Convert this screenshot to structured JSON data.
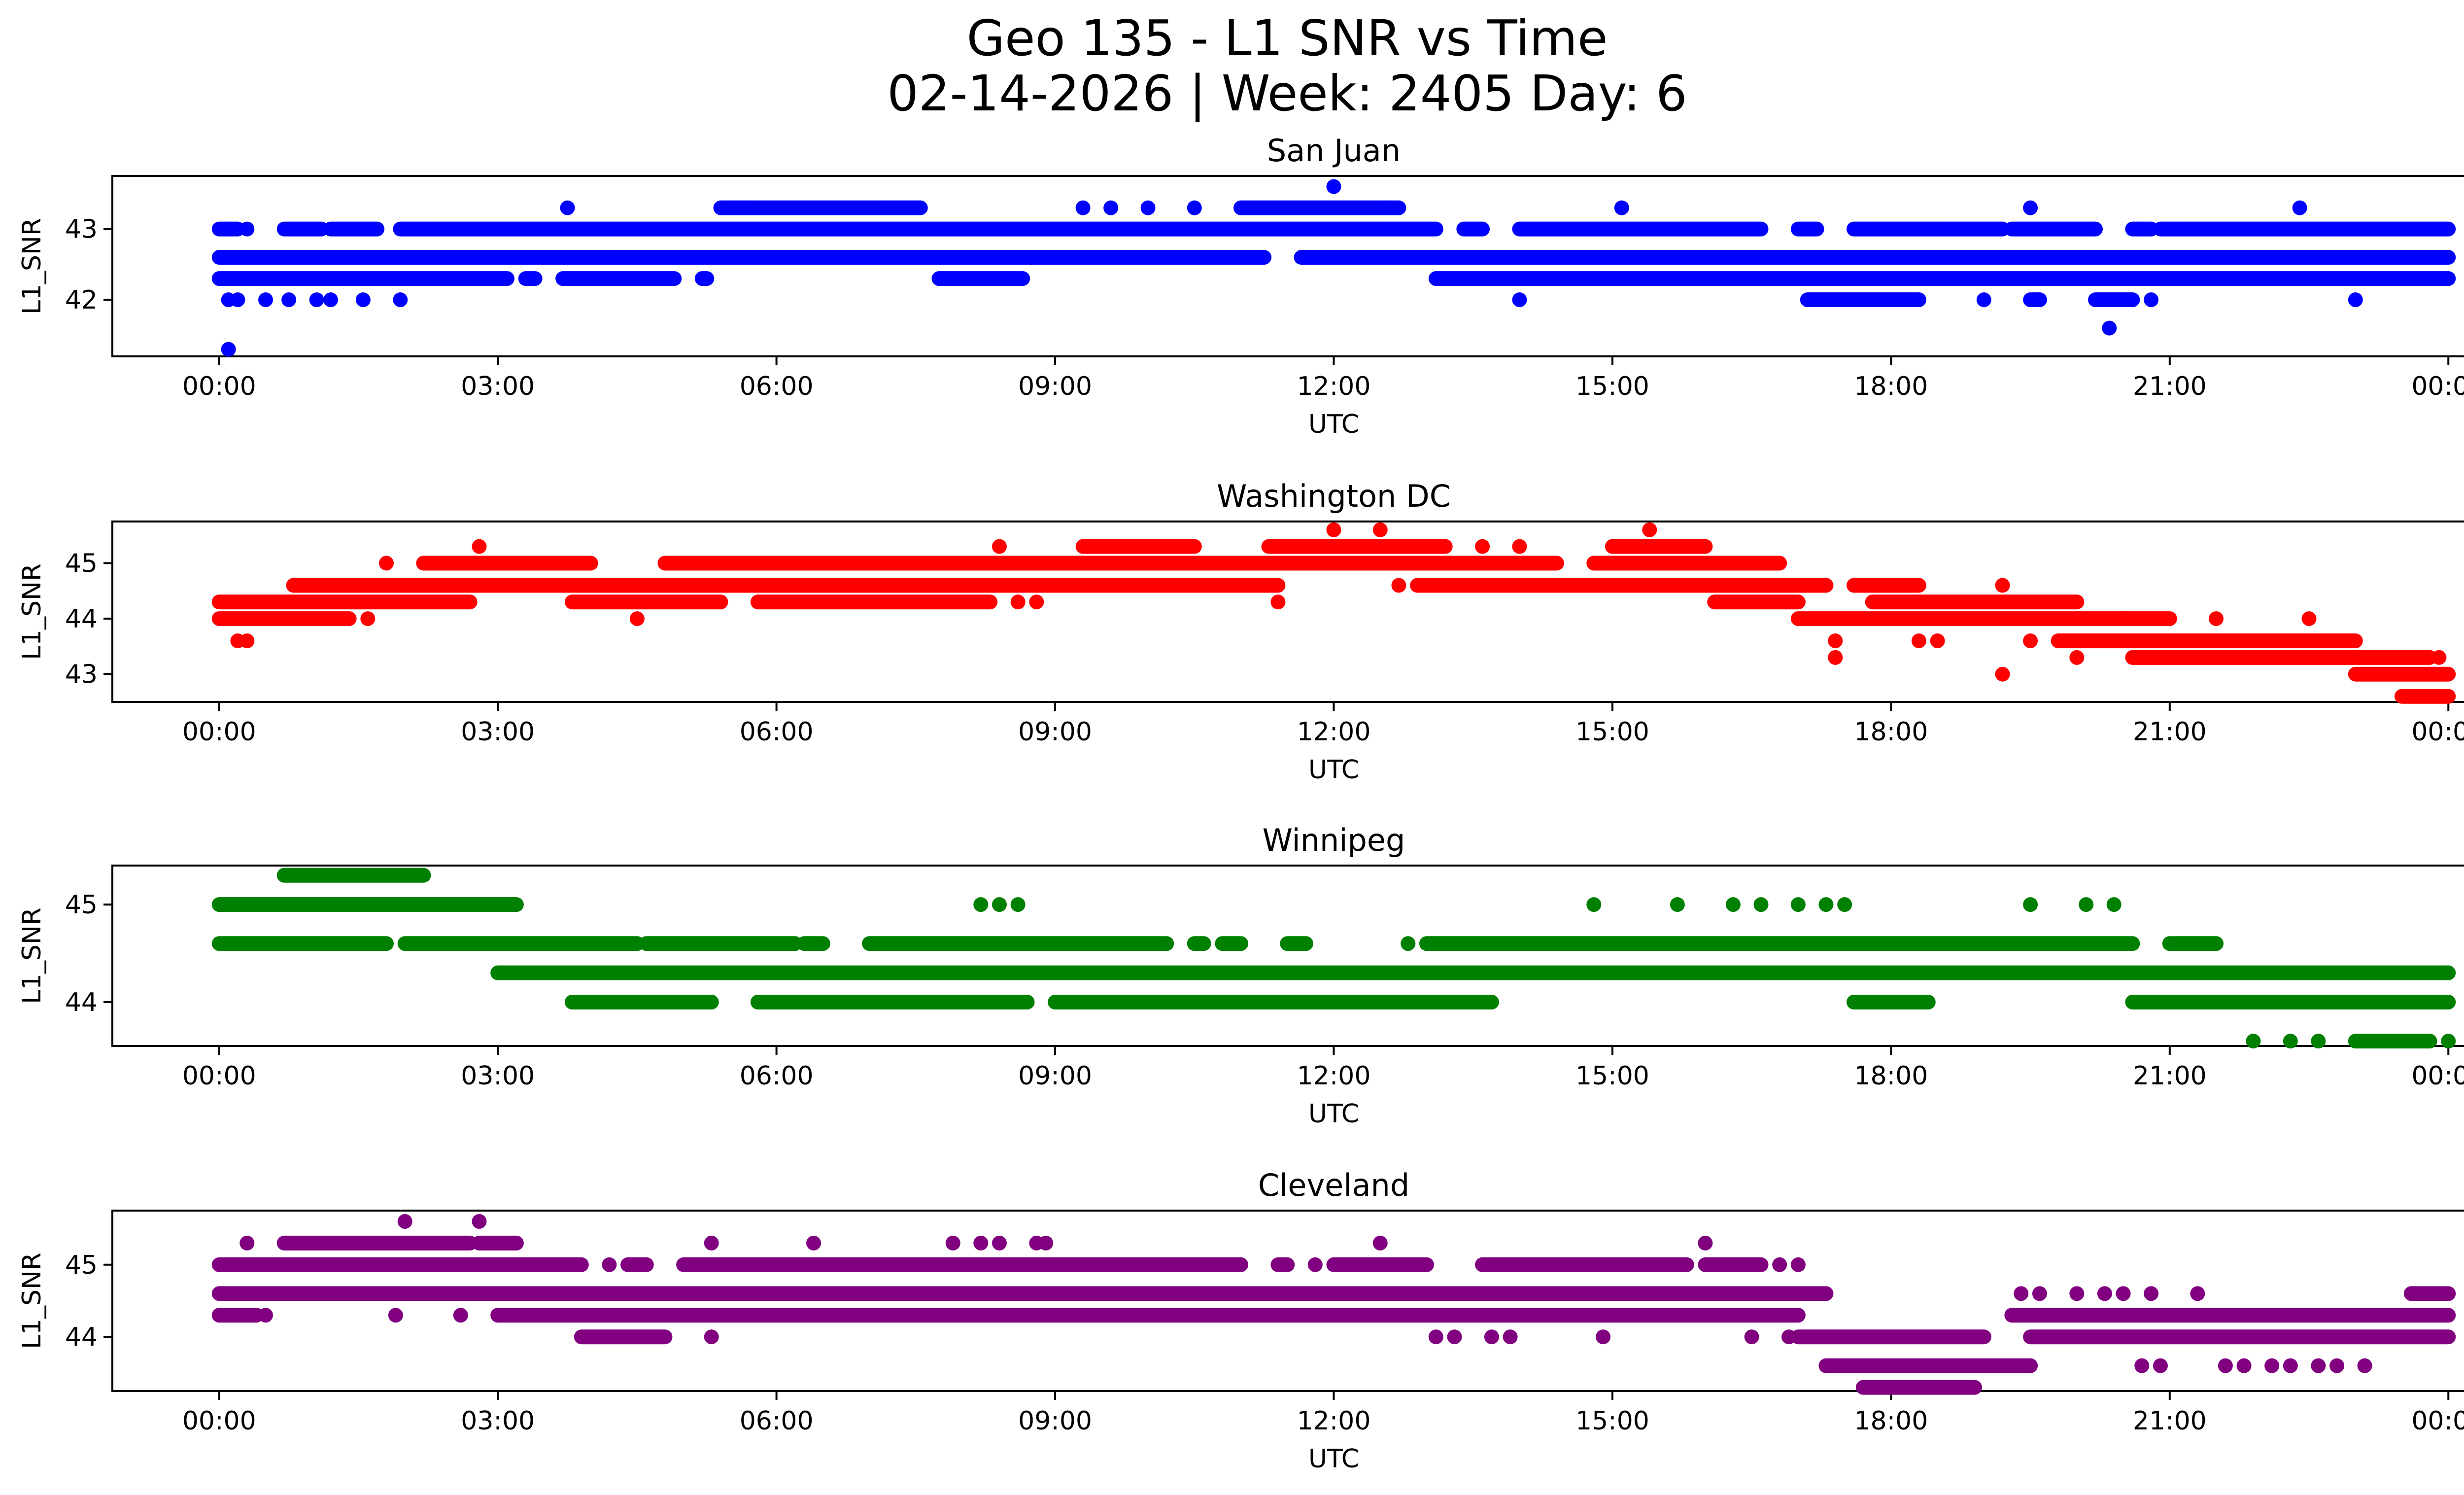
{
  "figure": {
    "title_line1": "Geo 135 - L1 SNR vs Time",
    "title_line2": "02-14-2026 | Week: 2405 Day: 6"
  },
  "chart_data": [
    {
      "type": "scatter",
      "title": "San Juan",
      "xlabel": "UTC",
      "ylabel": "L1_SNR",
      "color": "#0000ff",
      "x_ticks": [
        "00:00",
        "03:00",
        "06:00",
        "09:00",
        "12:00",
        "15:00",
        "18:00",
        "21:00",
        "00:00"
      ],
      "x_range_hours": [
        -1.15,
        25.15
      ],
      "ylim": [
        41.2,
        43.75
      ],
      "y_ticks": [
        42,
        43
      ],
      "series": [
        {
          "name": "band_42.6",
          "y": 42.6,
          "segments": [
            [
              0,
              11.25
            ],
            [
              11.65,
              24
            ]
          ]
        },
        {
          "name": "band_42.3",
          "y": 42.3,
          "segments": [
            [
              0,
              3.1
            ],
            [
              3.3,
              3.4
            ],
            [
              3.7,
              4.9
            ],
            [
              5.2,
              5.25
            ],
            [
              7.75,
              8.65
            ],
            [
              13.1,
              24
            ]
          ]
        },
        {
          "name": "band_43.0",
          "y": 43.0,
          "segments": [
            [
              0.0,
              0.2
            ],
            [
              0.7,
              1.1
            ],
            [
              1.2,
              1.7
            ],
            [
              1.95,
              13.1
            ],
            [
              13.4,
              13.6
            ],
            [
              14.0,
              16.6
            ],
            [
              17.0,
              17.2
            ],
            [
              17.6,
              19.2
            ],
            [
              19.3,
              20.2
            ],
            [
              20.6,
              20.8
            ],
            [
              20.9,
              24
            ]
          ]
        },
        {
          "name": "band_43.3",
          "y": 43.3,
          "segments": [
            [
              5.4,
              7.55
            ],
            [
              11.0,
              12.7
            ]
          ]
        },
        {
          "name": "band_42.0",
          "y": 42.0,
          "segments": [
            [
              17.1,
              18.3
            ],
            [
              19.5,
              19.6
            ],
            [
              20.2,
              20.6
            ]
          ]
        }
      ],
      "points": [
        {
          "x": 0.1,
          "y": 41.3
        },
        {
          "x": 0.1,
          "y": 42.0
        },
        {
          "x": 0.2,
          "y": 42.0
        },
        {
          "x": 0.5,
          "y": 42.0
        },
        {
          "x": 0.75,
          "y": 42.0
        },
        {
          "x": 1.05,
          "y": 42.0
        },
        {
          "x": 1.2,
          "y": 42.0
        },
        {
          "x": 1.55,
          "y": 42.0
        },
        {
          "x": 1.95,
          "y": 42.0
        },
        {
          "x": 0.3,
          "y": 43.0
        },
        {
          "x": 3.75,
          "y": 43.3
        },
        {
          "x": 9.3,
          "y": 43.3
        },
        {
          "x": 9.6,
          "y": 43.3
        },
        {
          "x": 10.0,
          "y": 43.3
        },
        {
          "x": 10.5,
          "y": 43.3
        },
        {
          "x": 12.0,
          "y": 43.6
        },
        {
          "x": 15.1,
          "y": 43.3
        },
        {
          "x": 19.5,
          "y": 43.3
        },
        {
          "x": 22.4,
          "y": 43.3
        },
        {
          "x": 14.0,
          "y": 42.0
        },
        {
          "x": 19.0,
          "y": 42.0
        },
        {
          "x": 20.8,
          "y": 42.0
        },
        {
          "x": 23.0,
          "y": 42.0
        },
        {
          "x": 20.35,
          "y": 41.6
        }
      ]
    },
    {
      "type": "scatter",
      "title": "Washington DC",
      "xlabel": "UTC",
      "ylabel": "L1_SNR",
      "color": "#ff0000",
      "x_ticks": [
        "00:00",
        "03:00",
        "06:00",
        "09:00",
        "12:00",
        "15:00",
        "18:00",
        "21:00",
        "00:00"
      ],
      "x_range_hours": [
        -1.15,
        25.15
      ],
      "ylim": [
        42.5,
        45.75
      ],
      "y_ticks": [
        43,
        44,
        45
      ],
      "series": [
        {
          "name": "band_44.0",
          "y": 44.0,
          "segments": [
            [
              0,
              1.4
            ],
            [
              17.0,
              20.5
            ],
            [
              20.5,
              21.0
            ]
          ]
        },
        {
          "name": "band_44.3",
          "y": 44.3,
          "segments": [
            [
              0,
              2.7
            ],
            [
              3.8,
              5.4
            ],
            [
              5.8,
              8.3
            ],
            [
              16.1,
              17.0
            ],
            [
              17.8,
              20.0
            ]
          ]
        },
        {
          "name": "band_44.6",
          "y": 44.6,
          "segments": [
            [
              0.8,
              11.4
            ],
            [
              12.9,
              17.3
            ],
            [
              17.6,
              18.3
            ]
          ]
        },
        {
          "name": "band_45.0",
          "y": 45.0,
          "segments": [
            [
              2.2,
              4.0
            ],
            [
              4.8,
              14.4
            ],
            [
              14.8,
              16.8
            ]
          ]
        },
        {
          "name": "band_45.3",
          "y": 45.3,
          "segments": [
            [
              9.3,
              10.5
            ],
            [
              11.3,
              13.2
            ],
            [
              15.0,
              16.0
            ]
          ]
        },
        {
          "name": "band_43.6",
          "y": 43.6,
          "segments": [
            [
              19.8,
              23.0
            ]
          ]
        },
        {
          "name": "band_43.3",
          "y": 43.3,
          "segments": [
            [
              20.6,
              23.8
            ]
          ]
        },
        {
          "name": "band_43.0",
          "y": 43.0,
          "segments": [
            [
              23.0,
              24.0
            ]
          ]
        },
        {
          "name": "band_42.6",
          "y": 42.6,
          "segments": [
            [
              23.5,
              24.0
            ]
          ]
        }
      ],
      "points": [
        {
          "x": 0.2,
          "y": 43.6
        },
        {
          "x": 0.3,
          "y": 43.6
        },
        {
          "x": 1.6,
          "y": 44.0
        },
        {
          "x": 1.8,
          "y": 45.0
        },
        {
          "x": 2.8,
          "y": 45.3
        },
        {
          "x": 4.5,
          "y": 44.0
        },
        {
          "x": 8.4,
          "y": 45.3
        },
        {
          "x": 8.6,
          "y": 44.3
        },
        {
          "x": 8.8,
          "y": 44.3
        },
        {
          "x": 11.4,
          "y": 44.3
        },
        {
          "x": 12.0,
          "y": 45.6
        },
        {
          "x": 12.5,
          "y": 45.6
        },
        {
          "x": 12.7,
          "y": 44.6
        },
        {
          "x": 13.6,
          "y": 45.3
        },
        {
          "x": 14.0,
          "y": 45.3
        },
        {
          "x": 15.4,
          "y": 45.6
        },
        {
          "x": 17.4,
          "y": 43.6
        },
        {
          "x": 17.4,
          "y": 43.3
        },
        {
          "x": 18.3,
          "y": 43.6
        },
        {
          "x": 18.5,
          "y": 43.6
        },
        {
          "x": 19.2,
          "y": 44.6
        },
        {
          "x": 19.2,
          "y": 43.0
        },
        {
          "x": 19.5,
          "y": 43.6
        },
        {
          "x": 20.0,
          "y": 43.3
        },
        {
          "x": 21.5,
          "y": 44.0
        },
        {
          "x": 22.5,
          "y": 44.0
        },
        {
          "x": 23.9,
          "y": 43.3
        }
      ]
    },
    {
      "type": "scatter",
      "title": "Winnipeg",
      "xlabel": "UTC",
      "ylabel": "L1_SNR",
      "color": "#008000",
      "x_ticks": [
        "00:00",
        "03:00",
        "06:00",
        "09:00",
        "12:00",
        "15:00",
        "18:00",
        "21:00",
        "00:00"
      ],
      "x_range_hours": [
        -1.15,
        25.15
      ],
      "ylim": [
        43.55,
        45.4
      ],
      "y_ticks": [
        44,
        45
      ],
      "series": [
        {
          "name": "band_45.0",
          "y": 45.0,
          "segments": [
            [
              0,
              3.2
            ]
          ]
        },
        {
          "name": "band_45.3",
          "y": 45.3,
          "segments": [
            [
              0.7,
              2.2
            ]
          ]
        },
        {
          "name": "band_44.6",
          "y": 44.6,
          "segments": [
            [
              0,
              1.8
            ],
            [
              2.0,
              4.5
            ],
            [
              4.6,
              6.2
            ],
            [
              6.3,
              6.5
            ],
            [
              7.0,
              10.2
            ],
            [
              10.5,
              10.6
            ],
            [
              10.8,
              11.0
            ],
            [
              11.5,
              11.7
            ],
            [
              13.0,
              20.6
            ],
            [
              21.0,
              21.5
            ]
          ]
        },
        {
          "name": "band_44.3",
          "y": 44.3,
          "segments": [
            [
              3.0,
              24.0
            ]
          ]
        },
        {
          "name": "band_44.0",
          "y": 44.0,
          "segments": [
            [
              3.8,
              5.3
            ],
            [
              5.8,
              8.7
            ],
            [
              9.0,
              13.7
            ],
            [
              17.6,
              18.4
            ],
            [
              20.6,
              24.0
            ]
          ]
        },
        {
          "name": "band_43.6",
          "y": 43.6,
          "segments": [
            [
              23.0,
              23.8
            ]
          ]
        }
      ],
      "points": [
        {
          "x": 8.2,
          "y": 45.0
        },
        {
          "x": 8.4,
          "y": 45.0
        },
        {
          "x": 8.6,
          "y": 45.0
        },
        {
          "x": 12.8,
          "y": 44.6
        },
        {
          "x": 14.8,
          "y": 45.0
        },
        {
          "x": 15.7,
          "y": 45.0
        },
        {
          "x": 16.3,
          "y": 45.0
        },
        {
          "x": 16.6,
          "y": 45.0
        },
        {
          "x": 17.0,
          "y": 45.0
        },
        {
          "x": 17.3,
          "y": 45.0
        },
        {
          "x": 17.5,
          "y": 45.0
        },
        {
          "x": 19.5,
          "y": 45.0
        },
        {
          "x": 20.1,
          "y": 45.0
        },
        {
          "x": 20.4,
          "y": 45.0
        },
        {
          "x": 21.9,
          "y": 43.6
        },
        {
          "x": 22.3,
          "y": 43.6
        },
        {
          "x": 22.6,
          "y": 43.6
        },
        {
          "x": 24.0,
          "y": 43.6
        }
      ]
    },
    {
      "type": "scatter",
      "title": "Cleveland",
      "xlabel": "UTC",
      "ylabel": "L1_SNR",
      "color": "#800080",
      "x_ticks": [
        "00:00",
        "03:00",
        "06:00",
        "09:00",
        "12:00",
        "15:00",
        "18:00",
        "21:00",
        "00:00"
      ],
      "x_range_hours": [
        -1.15,
        25.15
      ],
      "ylim": [
        43.25,
        45.75
      ],
      "y_ticks": [
        44,
        45
      ],
      "series": [
        {
          "name": "band_44.6",
          "y": 44.6,
          "segments": [
            [
              0,
              17.3
            ]
          ]
        },
        {
          "name": "band_45.0",
          "y": 45.0,
          "segments": [
            [
              0,
              3.9
            ],
            [
              4.4,
              4.6
            ],
            [
              5.0,
              11.0
            ],
            [
              11.4,
              11.5
            ],
            [
              12.0,
              13.0
            ],
            [
              13.6,
              15.8
            ],
            [
              16.0,
              16.6
            ]
          ]
        },
        {
          "name": "band_45.3",
          "y": 45.3,
          "segments": [
            [
              0.7,
              2.7
            ],
            [
              2.8,
              3.2
            ]
          ]
        },
        {
          "name": "band_44.3",
          "y": 44.3,
          "segments": [
            [
              0,
              0.4
            ],
            [
              3.0,
              17.0
            ],
            [
              19.3,
              24.0
            ]
          ]
        },
        {
          "name": "band_44.0",
          "y": 44.0,
          "segments": [
            [
              3.9,
              4.8
            ],
            [
              17.0,
              19.0
            ],
            [
              19.5,
              24.0
            ]
          ]
        },
        {
          "name": "band_43.6",
          "y": 43.6,
          "segments": [
            [
              17.3,
              19.5
            ]
          ]
        },
        {
          "name": "band_43.3",
          "y": 43.3,
          "segments": [
            [
              17.7,
              18.9
            ]
          ]
        },
        {
          "name": "band_44.6b",
          "y": 44.6,
          "segments": [
            [
              23.6,
              24.0
            ]
          ]
        }
      ],
      "points": [
        {
          "x": 0.3,
          "y": 45.3
        },
        {
          "x": 0.4,
          "y": 44.3
        },
        {
          "x": 0.5,
          "y": 44.3
        },
        {
          "x": 2.0,
          "y": 45.6
        },
        {
          "x": 1.9,
          "y": 44.3
        },
        {
          "x": 2.8,
          "y": 45.6
        },
        {
          "x": 2.6,
          "y": 44.3
        },
        {
          "x": 4.2,
          "y": 45.0
        },
        {
          "x": 5.3,
          "y": 45.3
        },
        {
          "x": 5.3,
          "y": 44.0
        },
        {
          "x": 6.4,
          "y": 45.3
        },
        {
          "x": 7.9,
          "y": 45.3
        },
        {
          "x": 8.2,
          "y": 45.3
        },
        {
          "x": 8.4,
          "y": 45.3
        },
        {
          "x": 8.8,
          "y": 45.3
        },
        {
          "x": 8.9,
          "y": 45.3
        },
        {
          "x": 11.8,
          "y": 45.0
        },
        {
          "x": 12.5,
          "y": 45.3
        },
        {
          "x": 13.1,
          "y": 44.0
        },
        {
          "x": 13.3,
          "y": 44.0
        },
        {
          "x": 13.7,
          "y": 44.0
        },
        {
          "x": 13.9,
          "y": 44.0
        },
        {
          "x": 14.9,
          "y": 44.0
        },
        {
          "x": 16.0,
          "y": 45.3
        },
        {
          "x": 16.8,
          "y": 45.0
        },
        {
          "x": 17.0,
          "y": 45.0
        },
        {
          "x": 16.5,
          "y": 44.0
        },
        {
          "x": 16.9,
          "y": 44.0
        },
        {
          "x": 19.4,
          "y": 44.6
        },
        {
          "x": 19.6,
          "y": 44.6
        },
        {
          "x": 20.0,
          "y": 44.6
        },
        {
          "x": 20.3,
          "y": 44.6
        },
        {
          "x": 20.5,
          "y": 44.6
        },
        {
          "x": 20.8,
          "y": 44.6
        },
        {
          "x": 20.7,
          "y": 43.6
        },
        {
          "x": 20.9,
          "y": 43.6
        },
        {
          "x": 21.3,
          "y": 44.6
        },
        {
          "x": 21.6,
          "y": 43.6
        },
        {
          "x": 21.8,
          "y": 43.6
        },
        {
          "x": 22.1,
          "y": 43.6
        },
        {
          "x": 22.3,
          "y": 43.6
        },
        {
          "x": 22.6,
          "y": 43.6
        },
        {
          "x": 22.8,
          "y": 43.6
        },
        {
          "x": 23.1,
          "y": 43.6
        }
      ]
    }
  ]
}
